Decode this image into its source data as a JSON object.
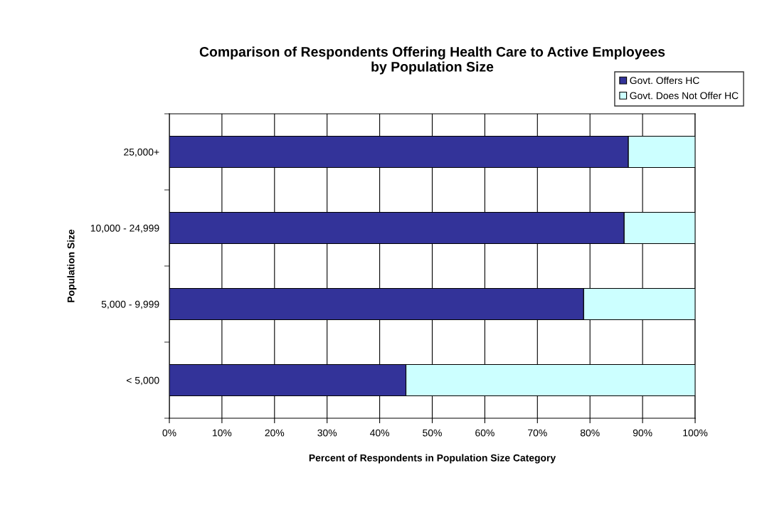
{
  "chart_data": {
    "type": "bar",
    "orientation": "horizontal",
    "stacked": true,
    "title": "Comparison of Respondents Offering Health Care to Active Employees\nby Population Size",
    "xlabel": "Percent of Respondents in Population Size Category",
    "ylabel": "Population Size",
    "categories": [
      "25,000+",
      "10,000 - 24,999",
      "5,000 - 9,999",
      "< 5,000"
    ],
    "series": [
      {
        "name": "Govt. Offers HC",
        "color": "#333399",
        "values": [
          87.3,
          86.5,
          78.8,
          45.0
        ]
      },
      {
        "name": "Govt. Does Not Offer HC",
        "color": "#ccffff",
        "values": [
          12.7,
          13.5,
          21.2,
          55.0
        ]
      }
    ],
    "xlim": [
      0,
      100
    ],
    "xticks": [
      {
        "value": 0,
        "label": "0%"
      },
      {
        "value": 10,
        "label": "10%"
      },
      {
        "value": 20,
        "label": "20%"
      },
      {
        "value": 30,
        "label": "30%"
      },
      {
        "value": 40,
        "label": "40%"
      },
      {
        "value": 50,
        "label": "50%"
      },
      {
        "value": 60,
        "label": "60%"
      },
      {
        "value": 70,
        "label": "70%"
      },
      {
        "value": 80,
        "label": "80%"
      },
      {
        "value": 90,
        "label": "90%"
      },
      {
        "value": 100,
        "label": "100%"
      }
    ],
    "grid": "x",
    "legend": "top right"
  }
}
